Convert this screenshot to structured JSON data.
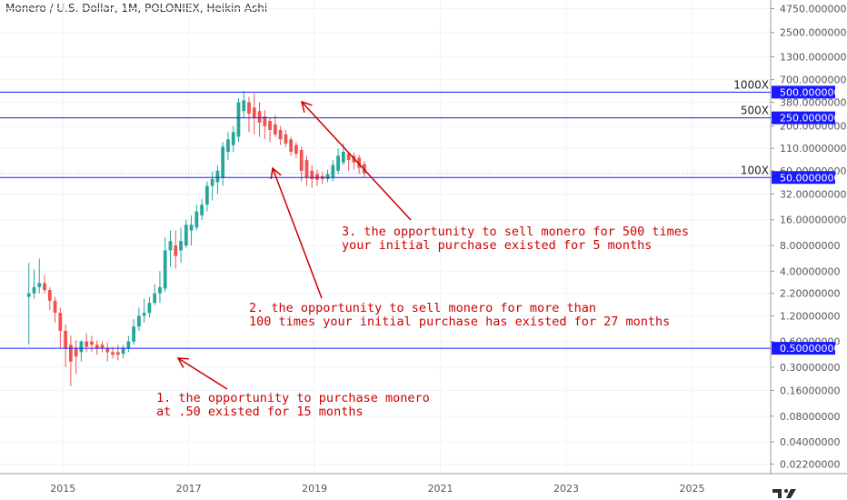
{
  "header": {
    "title": "Monero / U.S. Dollar, 1M, POLONIEX, Heikin Ashi"
  },
  "colors": {
    "up": "#26a69a",
    "down": "#ef5350",
    "hline": "#1a1aff",
    "annot": "#cc0000",
    "axis": "#555555"
  },
  "chart_data": {
    "type": "candlestick",
    "scale": "log",
    "ylim": [
      0.017,
      6000
    ],
    "x_range": [
      "2014-01",
      "2026-04"
    ],
    "x_ticks": [
      {
        "label": "2015",
        "date": "2015-01"
      },
      {
        "label": "2017",
        "date": "2017-01"
      },
      {
        "label": "2019",
        "date": "2019-01"
      },
      {
        "label": "2021",
        "date": "2021-01"
      },
      {
        "label": "2023",
        "date": "2023-01"
      },
      {
        "label": "2025",
        "date": "2025-01"
      }
    ],
    "y_ticks": [
      {
        "label": "4750.00000000",
        "value": 4750
      },
      {
        "label": "2500.00000000",
        "value": 2500
      },
      {
        "label": "1300.00000000",
        "value": 1300
      },
      {
        "label": "700.00000000",
        "value": 700
      },
      {
        "label": "380.00000000",
        "value": 380
      },
      {
        "label": "200.00000000",
        "value": 200
      },
      {
        "label": "110.00000000",
        "value": 110
      },
      {
        "label": "60.00000000",
        "value": 60
      },
      {
        "label": "32.00000000",
        "value": 32
      },
      {
        "label": "16.00000000",
        "value": 16
      },
      {
        "label": "8.00000000",
        "value": 8
      },
      {
        "label": "4.00000000",
        "value": 4
      },
      {
        "label": "2.20000000",
        "value": 2.2
      },
      {
        "label": "1.20000000",
        "value": 1.2
      },
      {
        "label": "0.60000000",
        "value": 0.6
      },
      {
        "label": "0.30000000",
        "value": 0.3
      },
      {
        "label": "0.16000000",
        "value": 0.16
      },
      {
        "label": "0.08000000",
        "value": 0.08
      },
      {
        "label": "0.04000000",
        "value": 0.04
      },
      {
        "label": "0.02200000",
        "value": 0.022
      }
    ],
    "horizontal_lines": [
      {
        "value": 500,
        "label": "500.00000000",
        "annotation": "1000X"
      },
      {
        "value": 250,
        "label": "250.00000000",
        "annotation": "500X"
      },
      {
        "value": 50,
        "label": "50.00000000",
        "annotation": "100X"
      },
      {
        "value": 0.5,
        "label": "0.50000000",
        "annotation": ""
      }
    ],
    "current_price": {
      "value": 56,
      "color": "#ef5350"
    },
    "candles": [
      {
        "date": "2014-06",
        "o": 2.0,
        "h": 5.0,
        "l": 0.55,
        "c": 2.2
      },
      {
        "date": "2014-07",
        "o": 2.2,
        "h": 4.2,
        "l": 1.9,
        "c": 2.6
      },
      {
        "date": "2014-08",
        "o": 2.6,
        "h": 5.6,
        "l": 2.2,
        "c": 2.9
      },
      {
        "date": "2014-09",
        "o": 2.9,
        "h": 3.6,
        "l": 2.2,
        "c": 2.4
      },
      {
        "date": "2014-10",
        "o": 2.4,
        "h": 2.6,
        "l": 1.4,
        "c": 1.8
      },
      {
        "date": "2014-11",
        "o": 1.8,
        "h": 2.0,
        "l": 1.0,
        "c": 1.3
      },
      {
        "date": "2014-12",
        "o": 1.3,
        "h": 1.5,
        "l": 0.5,
        "c": 0.8
      },
      {
        "date": "2015-01",
        "o": 0.8,
        "h": 0.95,
        "l": 0.3,
        "c": 0.5
      },
      {
        "date": "2015-02",
        "o": 0.55,
        "h": 0.7,
        "l": 0.18,
        "c": 0.35
      },
      {
        "date": "2015-03",
        "o": 0.5,
        "h": 0.62,
        "l": 0.25,
        "c": 0.4
      },
      {
        "date": "2015-04",
        "o": 0.45,
        "h": 0.62,
        "l": 0.35,
        "c": 0.6
      },
      {
        "date": "2015-05",
        "o": 0.6,
        "h": 0.75,
        "l": 0.45,
        "c": 0.52
      },
      {
        "date": "2015-06",
        "o": 0.6,
        "h": 0.7,
        "l": 0.45,
        "c": 0.55
      },
      {
        "date": "2015-07",
        "o": 0.55,
        "h": 0.62,
        "l": 0.42,
        "c": 0.5
      },
      {
        "date": "2015-08",
        "o": 0.55,
        "h": 0.6,
        "l": 0.45,
        "c": 0.5
      },
      {
        "date": "2015-09",
        "o": 0.5,
        "h": 0.58,
        "l": 0.35,
        "c": 0.45
      },
      {
        "date": "2015-10",
        "o": 0.45,
        "h": 0.52,
        "l": 0.38,
        "c": 0.42
      },
      {
        "date": "2015-11",
        "o": 0.45,
        "h": 0.55,
        "l": 0.36,
        "c": 0.42
      },
      {
        "date": "2015-12",
        "o": 0.43,
        "h": 0.55,
        "l": 0.38,
        "c": 0.5
      },
      {
        "date": "2016-01",
        "o": 0.5,
        "h": 0.7,
        "l": 0.45,
        "c": 0.6
      },
      {
        "date": "2016-02",
        "o": 0.6,
        "h": 1.1,
        "l": 0.55,
        "c": 0.9
      },
      {
        "date": "2016-03",
        "o": 0.9,
        "h": 1.5,
        "l": 0.8,
        "c": 1.2
      },
      {
        "date": "2016-04",
        "o": 1.2,
        "h": 1.9,
        "l": 1.0,
        "c": 1.3
      },
      {
        "date": "2016-05",
        "o": 1.3,
        "h": 2.0,
        "l": 1.15,
        "c": 1.7
      },
      {
        "date": "2016-06",
        "o": 1.7,
        "h": 2.8,
        "l": 1.6,
        "c": 2.2
      },
      {
        "date": "2016-07",
        "o": 2.2,
        "h": 4.0,
        "l": 1.7,
        "c": 2.6
      },
      {
        "date": "2016-08",
        "o": 2.5,
        "h": 10.0,
        "l": 2.3,
        "c": 7.0
      },
      {
        "date": "2016-09",
        "o": 7.0,
        "h": 12.0,
        "l": 4.5,
        "c": 9.0
      },
      {
        "date": "2016-10",
        "o": 8.0,
        "h": 12.0,
        "l": 4.3,
        "c": 6.0
      },
      {
        "date": "2016-11",
        "o": 7.0,
        "h": 13.0,
        "l": 5.0,
        "c": 9.0
      },
      {
        "date": "2016-12",
        "o": 8.0,
        "h": 16.0,
        "l": 7.5,
        "c": 14.0
      },
      {
        "date": "2017-01",
        "o": 12.0,
        "h": 18.0,
        "l": 8.0,
        "c": 14.0
      },
      {
        "date": "2017-02",
        "o": 13.0,
        "h": 24.0,
        "l": 12.0,
        "c": 20.0
      },
      {
        "date": "2017-03",
        "o": 18.0,
        "h": 28.0,
        "l": 16.0,
        "c": 24.0
      },
      {
        "date": "2017-04",
        "o": 24.0,
        "h": 45.0,
        "l": 20.0,
        "c": 40.0
      },
      {
        "date": "2017-05",
        "o": 40.0,
        "h": 58.0,
        "l": 27.0,
        "c": 48.0
      },
      {
        "date": "2017-06",
        "o": 44.0,
        "h": 70.0,
        "l": 32.0,
        "c": 60.0
      },
      {
        "date": "2017-07",
        "o": 50.0,
        "h": 130.0,
        "l": 40.0,
        "c": 115.0
      },
      {
        "date": "2017-08",
        "o": 100.0,
        "h": 170.0,
        "l": 80.0,
        "c": 140.0
      },
      {
        "date": "2017-09",
        "o": 120.0,
        "h": 200.0,
        "l": 100.0,
        "c": 170.0
      },
      {
        "date": "2017-10",
        "o": 150.0,
        "h": 420.0,
        "l": 130.0,
        "c": 380.0
      },
      {
        "date": "2017-11",
        "o": 300.0,
        "h": 520.0,
        "l": 250.0,
        "c": 400.0
      },
      {
        "date": "2017-12",
        "o": 380.0,
        "h": 440.0,
        "l": 170.0,
        "c": 280.0
      },
      {
        "date": "2018-01",
        "o": 330.0,
        "h": 480.0,
        "l": 160.0,
        "c": 250.0
      },
      {
        "date": "2018-02",
        "o": 300.0,
        "h": 380.0,
        "l": 150.0,
        "c": 220.0
      },
      {
        "date": "2018-03",
        "o": 260.0,
        "h": 310.0,
        "l": 140.0,
        "c": 200.0
      },
      {
        "date": "2018-04",
        "o": 230.0,
        "h": 250.0,
        "l": 130.0,
        "c": 180.0
      },
      {
        "date": "2018-05",
        "o": 210.0,
        "h": 270.0,
        "l": 150.0,
        "c": 160.0
      },
      {
        "date": "2018-06",
        "o": 180.0,
        "h": 200.0,
        "l": 120.0,
        "c": 140.0
      },
      {
        "date": "2018-07",
        "o": 160.0,
        "h": 180.0,
        "l": 115.0,
        "c": 125.0
      },
      {
        "date": "2018-08",
        "o": 140.0,
        "h": 150.0,
        "l": 90.0,
        "c": 100.0
      },
      {
        "date": "2018-09",
        "o": 120.0,
        "h": 130.0,
        "l": 85.0,
        "c": 95.0
      },
      {
        "date": "2018-10",
        "o": 105.0,
        "h": 115.0,
        "l": 45.0,
        "c": 60.0
      },
      {
        "date": "2018-11",
        "o": 80.0,
        "h": 90.0,
        "l": 40.0,
        "c": 50.0
      },
      {
        "date": "2018-12",
        "o": 60.0,
        "h": 70.0,
        "l": 38.0,
        "c": 48.0
      },
      {
        "date": "2019-01",
        "o": 55.0,
        "h": 62.0,
        "l": 40.0,
        "c": 47.0
      },
      {
        "date": "2019-02",
        "o": 52.0,
        "h": 58.0,
        "l": 42.0,
        "c": 48.0
      },
      {
        "date": "2019-03",
        "o": 48.0,
        "h": 62.0,
        "l": 44.0,
        "c": 55.0
      },
      {
        "date": "2019-04",
        "o": 50.0,
        "h": 80.0,
        "l": 45.0,
        "c": 70.0
      },
      {
        "date": "2019-05",
        "o": 60.0,
        "h": 110.0,
        "l": 55.0,
        "c": 90.0
      },
      {
        "date": "2019-06",
        "o": 75.0,
        "h": 125.0,
        "l": 70.0,
        "c": 100.0
      },
      {
        "date": "2019-07",
        "o": 95.0,
        "h": 100.0,
        "l": 60.0,
        "c": 80.0
      },
      {
        "date": "2019-08",
        "o": 90.0,
        "h": 98.0,
        "l": 62.0,
        "c": 75.0
      },
      {
        "date": "2019-09",
        "o": 85.0,
        "h": 92.0,
        "l": 55.0,
        "c": 65.0
      },
      {
        "date": "2019-10",
        "o": 72.0,
        "h": 78.0,
        "l": 50.0,
        "c": 56.0
      }
    ],
    "annotations": [
      {
        "lines": [
          "1. the opportunity to purchase monero",
          " at .50 existed for 15 months"
        ]
      },
      {
        "lines": [
          "2. the opportunity to sell monero for more than",
          "100 times your initial purchase has existed for 27 months"
        ]
      },
      {
        "lines": [
          "3. the opportunity to sell monero for 500 times",
          "your initial purchase existed for 5 months"
        ]
      }
    ]
  }
}
